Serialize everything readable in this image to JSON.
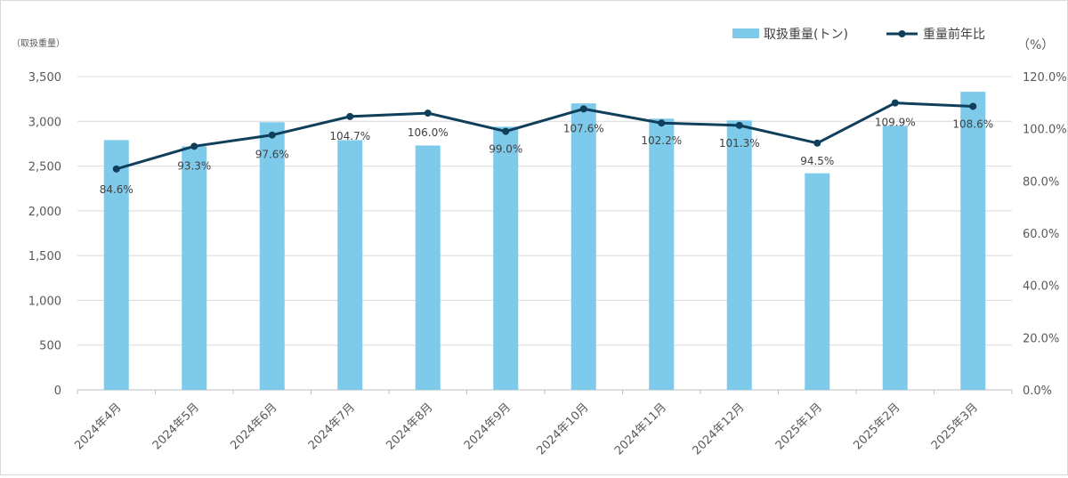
{
  "chart_data": {
    "type": "bar",
    "categories": [
      "2024年4月",
      "2024年5月",
      "2024年6月",
      "2024年7月",
      "2024年8月",
      "2024年9月",
      "2024年10月",
      "2024年11月",
      "2024年12月",
      "2025年1月",
      "2025年2月",
      "2025年3月"
    ],
    "series": [
      {
        "name": "取扱重量(トン)",
        "type": "bar",
        "axis": "left",
        "color": "#7ecaeb",
        "values": [
          2790,
          2720,
          2990,
          2790,
          2730,
          2940,
          3200,
          3030,
          3010,
          2420,
          2950,
          3330
        ]
      },
      {
        "name": "重量前年比",
        "type": "line",
        "axis": "right",
        "color": "#0f3f5a",
        "values": [
          84.6,
          93.3,
          97.6,
          104.7,
          106.0,
          99.0,
          107.6,
          102.2,
          101.3,
          94.5,
          109.9,
          108.6
        ],
        "labels": [
          "84.6%",
          "93.3%",
          "97.6%",
          "104.7%",
          "106.0%",
          "99.0%",
          "107.6%",
          "102.2%",
          "101.3%",
          "94.5%",
          "109.9%",
          "108.6%"
        ]
      }
    ],
    "y_left": {
      "label": "（取扱重量）",
      "range": [
        0,
        3500
      ],
      "ticks": [
        "0",
        "500",
        "1,000",
        "1,500",
        "2,000",
        "2,500",
        "3,000",
        "3,500"
      ]
    },
    "y_right": {
      "label": "（%）",
      "range": [
        0,
        120
      ],
      "ticks": [
        "0.0%",
        "20.0%",
        "40.0%",
        "60.0%",
        "80.0%",
        "100.0%",
        "120.0%"
      ]
    },
    "grid": true,
    "legend": "top-right",
    "gridline_color": "#d9d9d9"
  }
}
